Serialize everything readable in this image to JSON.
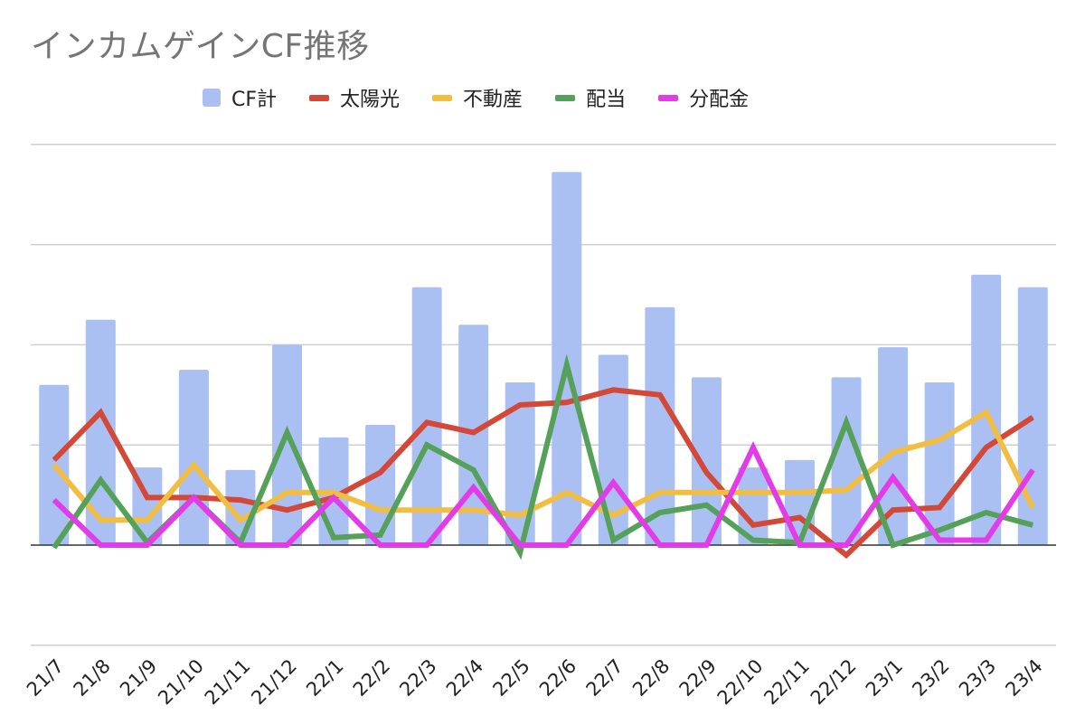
{
  "chart_data": {
    "type": "bar",
    "title": "インカムゲインCF推移",
    "xlabel": "",
    "ylabel": "",
    "ylim": [
      -2,
      8
    ],
    "grid": true,
    "legend_position": "top",
    "categories": [
      "21/7",
      "21/8",
      "21/9",
      "21/10",
      "21/11",
      "21/12",
      "22/1",
      "22/2",
      "22/3",
      "22/4",
      "22/5",
      "22/6",
      "22/7",
      "22/8",
      "22/9",
      "22/10",
      "22/11",
      "22/12",
      "23/1",
      "23/2",
      "23/3",
      "23/4"
    ],
    "series": [
      {
        "name": "CF計",
        "type": "bar",
        "color": "#aabff2",
        "values": [
          3.2,
          4.5,
          1.55,
          3.5,
          1.5,
          4.0,
          2.15,
          2.4,
          5.15,
          4.4,
          3.25,
          7.45,
          3.8,
          4.75,
          3.35,
          1.55,
          1.7,
          3.35,
          3.95,
          3.25,
          5.4,
          5.15
        ]
      },
      {
        "name": "太陽光",
        "type": "line",
        "color": "#d34836",
        "values": [
          1.7,
          2.65,
          0.95,
          0.95,
          0.9,
          0.7,
          0.95,
          1.45,
          2.45,
          2.25,
          2.8,
          2.85,
          3.1,
          3.0,
          1.45,
          0.4,
          0.55,
          -0.2,
          0.7,
          0.75,
          1.95,
          2.55
        ]
      },
      {
        "name": "不動産",
        "type": "line",
        "color": "#f1be42",
        "values": [
          1.6,
          0.5,
          0.5,
          1.6,
          0.5,
          1.05,
          1.05,
          0.7,
          0.7,
          0.7,
          0.6,
          1.05,
          0.6,
          1.05,
          1.05,
          1.05,
          1.05,
          1.1,
          1.85,
          2.1,
          2.65,
          0.75
        ]
      },
      {
        "name": "配当",
        "type": "line",
        "color": "#55a159",
        "values": [
          -0.05,
          1.3,
          0.05,
          0.95,
          0.05,
          2.25,
          0.15,
          0.2,
          2.0,
          1.5,
          -0.15,
          3.6,
          0.1,
          0.65,
          0.8,
          0.1,
          0.05,
          2.45,
          0.0,
          0.3,
          0.65,
          0.4
        ]
      },
      {
        "name": "分配金",
        "type": "line",
        "color": "#e23ce8",
        "values": [
          0.9,
          0.0,
          0.0,
          0.95,
          0.0,
          0.0,
          0.95,
          0.0,
          0.0,
          1.15,
          0.0,
          0.0,
          1.25,
          0.0,
          0.0,
          1.95,
          0.0,
          0.0,
          1.35,
          0.1,
          0.1,
          1.5
        ]
      }
    ]
  }
}
